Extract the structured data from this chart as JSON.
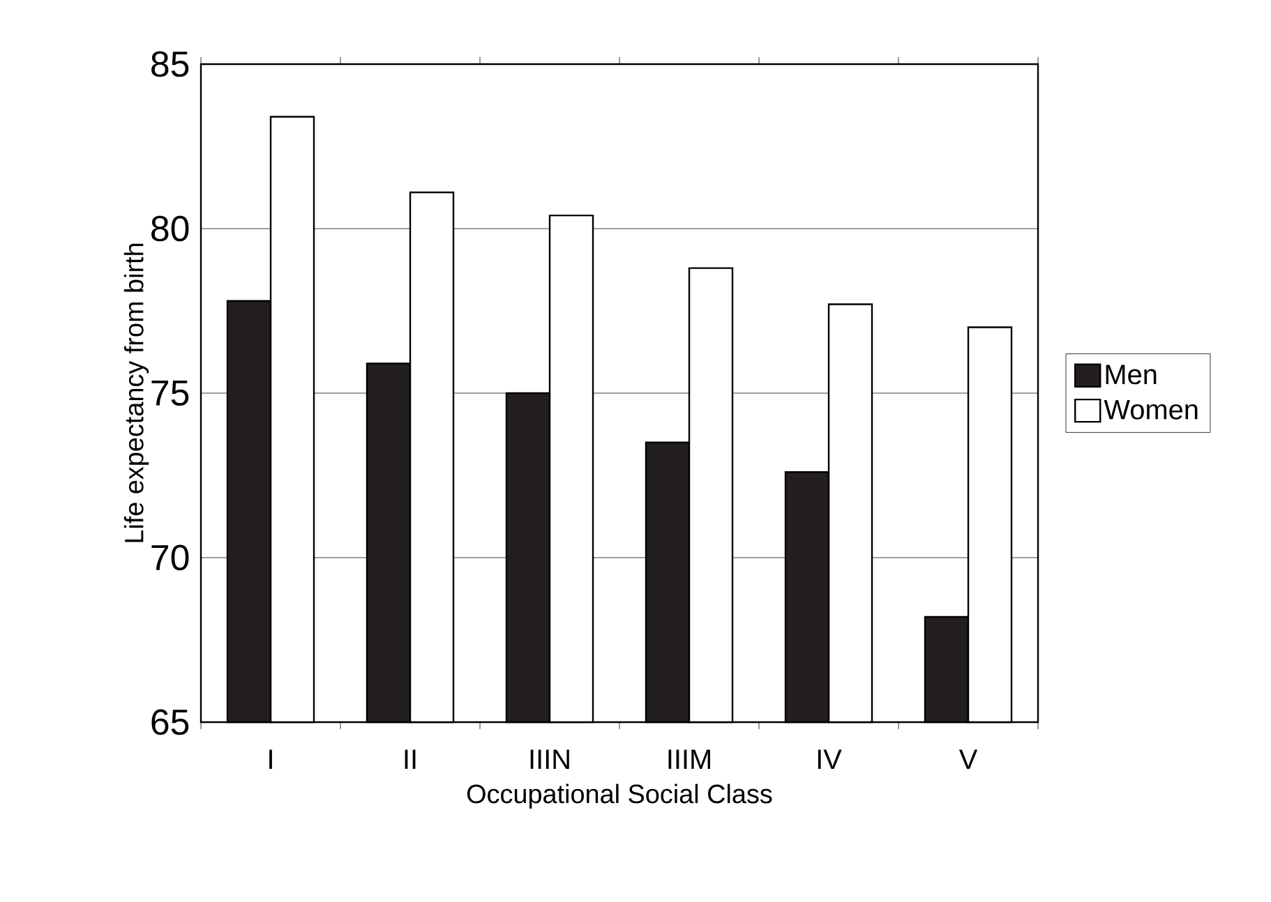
{
  "chart_data": {
    "type": "bar",
    "xlabel": "Occupational Social Class",
    "ylabel": "Life expectancy from birth",
    "categories": [
      "I",
      "II",
      "IIIN",
      "IIIM",
      "IV",
      "V"
    ],
    "series": [
      {
        "name": "Men",
        "color": "#231f20",
        "values": [
          77.8,
          75.9,
          75.0,
          73.5,
          72.6,
          68.2
        ]
      },
      {
        "name": "Women",
        "color": "#ffffff",
        "values": [
          83.4,
          81.1,
          80.4,
          78.8,
          77.7,
          77.0
        ]
      }
    ],
    "ylim": [
      65,
      85
    ],
    "yticks": [
      65,
      70,
      75,
      80,
      85
    ],
    "grid": "y",
    "legend": "right"
  }
}
